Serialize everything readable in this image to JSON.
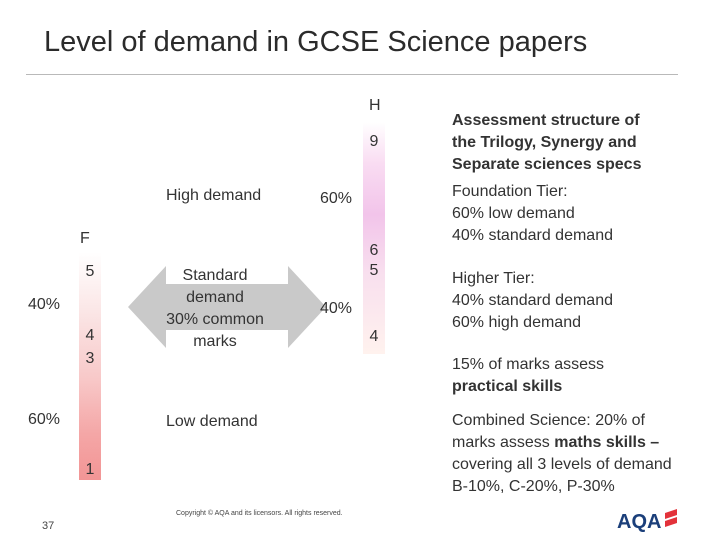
{
  "title": "Level of demand in GCSE Science papers",
  "tiers": {
    "foundation": {
      "label": "F",
      "grades": [
        "5",
        "4",
        "3",
        "1"
      ],
      "standard_pct": "40%",
      "low_pct": "60%"
    },
    "higher": {
      "label": "H",
      "grades": [
        "9",
        "6",
        "5",
        "4"
      ],
      "high_pct": "60%",
      "standard_pct": "40%"
    }
  },
  "demand_labels": {
    "high": "High demand",
    "standard": [
      "Standard",
      "demand",
      "30% common",
      "marks"
    ],
    "low": "Low demand"
  },
  "info": {
    "assessment": [
      "Assessment structure of",
      "the Trilogy, Synergy and",
      "Separate sciences specs"
    ],
    "foundation": [
      "Foundation Tier:",
      "60% low demand",
      "40% standard demand"
    ],
    "higher": [
      "Higher Tier:",
      "40% standard demand",
      "60% high demand"
    ],
    "practical": [
      "15% of marks assess",
      "practical skills"
    ],
    "combined_lines": [
      "Combined Science: 20% of",
      "marks assess ",
      "maths skills –",
      "covering all 3 levels of demand",
      "B-10%, C-20%, P-30%"
    ]
  },
  "footer": {
    "copyright": "Copyright © AQA and its licensors. All rights reserved.",
    "page_number": "37",
    "logo_text": "AQA"
  },
  "colors": {
    "foundation_bar": "#f29595",
    "higher_bar": "#f2c4ea",
    "arrow": "#c9c9c9",
    "logo": "#1b3f7a",
    "logo_accent": "#e3323a"
  }
}
